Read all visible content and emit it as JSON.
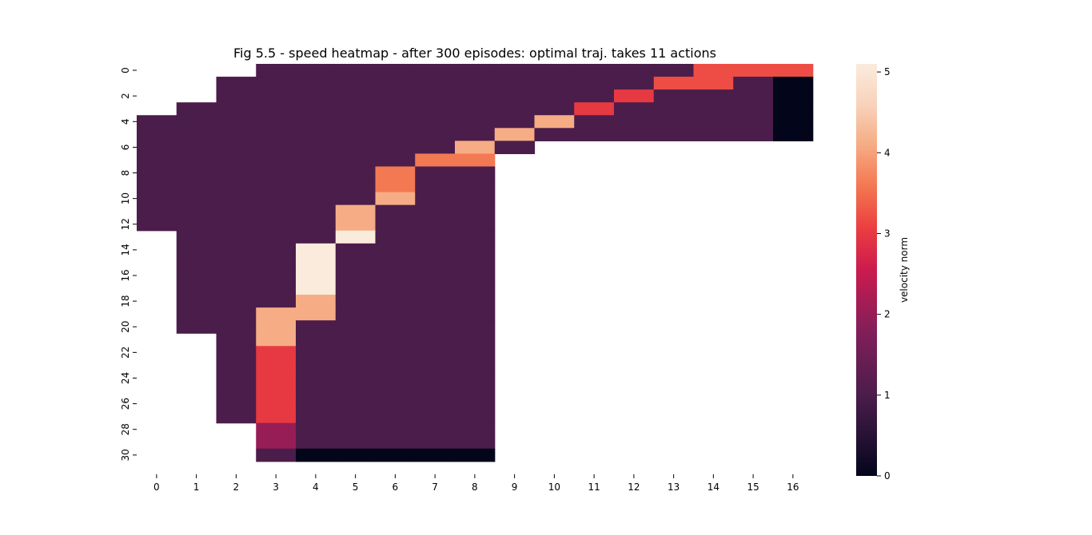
{
  "chart_data": {
    "type": "heatmap",
    "title": "Fig 5.5 - speed heatmap - after 300 episodes:  optimal traj. takes 11 actions",
    "colorbar_label": "velocity norm",
    "colormap": "rocket",
    "vmin": 0,
    "vmax": 5.1,
    "colorbar_ticks": [
      "0",
      "1",
      "2",
      "3",
      "4",
      "5"
    ],
    "x_ticks": [
      "0",
      "1",
      "2",
      "3",
      "4",
      "5",
      "6",
      "7",
      "8",
      "9",
      "10",
      "11",
      "12",
      "13",
      "14",
      "15",
      "16"
    ],
    "y_ticks": [
      "0",
      "2",
      "4",
      "6",
      "8",
      "10",
      "12",
      "14",
      "16",
      "18",
      "20",
      "22",
      "24",
      "26",
      "28",
      "30"
    ],
    "n_rows": 32,
    "n_cols": 17,
    "matrix": [
      [
        null,
        null,
        null,
        1,
        1,
        1,
        1,
        1,
        1,
        1,
        1,
        1,
        1,
        1,
        3.2,
        3.2,
        3.2
      ],
      [
        null,
        null,
        1,
        1,
        1,
        1,
        1,
        1,
        1,
        1,
        1,
        1,
        1,
        3.2,
        3.2,
        1,
        0
      ],
      [
        null,
        null,
        1,
        1,
        1,
        1,
        1,
        1,
        1,
        1,
        1,
        1,
        3,
        1,
        1,
        1,
        0
      ],
      [
        null,
        1,
        1,
        1,
        1,
        1,
        1,
        1,
        1,
        1,
        1,
        3,
        1,
        1,
        1,
        1,
        0
      ],
      [
        1,
        1,
        1,
        1,
        1,
        1,
        1,
        1,
        1,
        1,
        4.1,
        1,
        1,
        1,
        1,
        1,
        0
      ],
      [
        1,
        1,
        1,
        1,
        1,
        1,
        1,
        1,
        1,
        4.1,
        1,
        1,
        1,
        1,
        1,
        1,
        0
      ],
      [
        1,
        1,
        1,
        1,
        1,
        1,
        1,
        1,
        4.1,
        1,
        null,
        null,
        null,
        null,
        null,
        null,
        null
      ],
      [
        1,
        1,
        1,
        1,
        1,
        1,
        1,
        3.6,
        3.6,
        null,
        null,
        null,
        null,
        null,
        null,
        null,
        null
      ],
      [
        1,
        1,
        1,
        1,
        1,
        1,
        3.6,
        1,
        1,
        null,
        null,
        null,
        null,
        null,
        null,
        null,
        null
      ],
      [
        1,
        1,
        1,
        1,
        1,
        1,
        3.6,
        1,
        1,
        null,
        null,
        null,
        null,
        null,
        null,
        null,
        null
      ],
      [
        1,
        1,
        1,
        1,
        1,
        1,
        4.1,
        1,
        1,
        null,
        null,
        null,
        null,
        null,
        null,
        null,
        null
      ],
      [
        1,
        1,
        1,
        1,
        1,
        4.1,
        1,
        1,
        1,
        null,
        null,
        null,
        null,
        null,
        null,
        null,
        null
      ],
      [
        1,
        1,
        1,
        1,
        1,
        4.1,
        1,
        1,
        1,
        null,
        null,
        null,
        null,
        null,
        null,
        null,
        null
      ],
      [
        null,
        1,
        1,
        1,
        1,
        5.1,
        1,
        1,
        1,
        null,
        null,
        null,
        null,
        null,
        null,
        null,
        null
      ],
      [
        null,
        1,
        1,
        1,
        5.1,
        1,
        1,
        1,
        1,
        null,
        null,
        null,
        null,
        null,
        null,
        null,
        null
      ],
      [
        null,
        1,
        1,
        1,
        5.1,
        1,
        1,
        1,
        1,
        null,
        null,
        null,
        null,
        null,
        null,
        null,
        null
      ],
      [
        null,
        1,
        1,
        1,
        5.1,
        1,
        1,
        1,
        1,
        null,
        null,
        null,
        null,
        null,
        null,
        null,
        null
      ],
      [
        null,
        1,
        1,
        1,
        5.1,
        1,
        1,
        1,
        1,
        null,
        null,
        null,
        null,
        null,
        null,
        null,
        null
      ],
      [
        null,
        1,
        1,
        1,
        4.1,
        1,
        1,
        1,
        1,
        null,
        null,
        null,
        null,
        null,
        null,
        null,
        null
      ],
      [
        null,
        1,
        1,
        4.1,
        4.1,
        1,
        1,
        1,
        1,
        null,
        null,
        null,
        null,
        null,
        null,
        null,
        null
      ],
      [
        null,
        1,
        1,
        4.1,
        1,
        1,
        1,
        1,
        1,
        null,
        null,
        null,
        null,
        null,
        null,
        null,
        null
      ],
      [
        null,
        null,
        1,
        4.1,
        1,
        1,
        1,
        1,
        1,
        null,
        null,
        null,
        null,
        null,
        null,
        null,
        null
      ],
      [
        null,
        null,
        1,
        3,
        1,
        1,
        1,
        1,
        1,
        null,
        null,
        null,
        null,
        null,
        null,
        null,
        null
      ],
      [
        null,
        null,
        1,
        3,
        1,
        1,
        1,
        1,
        1,
        null,
        null,
        null,
        null,
        null,
        null,
        null,
        null
      ],
      [
        null,
        null,
        1,
        3,
        1,
        1,
        1,
        1,
        1,
        null,
        null,
        null,
        null,
        null,
        null,
        null,
        null
      ],
      [
        null,
        null,
        1,
        3,
        1,
        1,
        1,
        1,
        1,
        null,
        null,
        null,
        null,
        null,
        null,
        null,
        null
      ],
      [
        null,
        null,
        1,
        3,
        1,
        1,
        1,
        1,
        1,
        null,
        null,
        null,
        null,
        null,
        null,
        null,
        null
      ],
      [
        null,
        null,
        1,
        3,
        1,
        1,
        1,
        1,
        1,
        null,
        null,
        null,
        null,
        null,
        null,
        null,
        null
      ],
      [
        null,
        null,
        null,
        2,
        1,
        1,
        1,
        1,
        1,
        null,
        null,
        null,
        null,
        null,
        null,
        null,
        null
      ],
      [
        null,
        null,
        null,
        2,
        1,
        1,
        1,
        1,
        1,
        null,
        null,
        null,
        null,
        null,
        null,
        null,
        null
      ],
      [
        null,
        null,
        null,
        1,
        0,
        0,
        0,
        0,
        0,
        null,
        null,
        null,
        null,
        null,
        null,
        null,
        null
      ],
      [
        null,
        null,
        null,
        null,
        null,
        null,
        null,
        null,
        null,
        null,
        null,
        null,
        null,
        null,
        null,
        null,
        null
      ]
    ]
  }
}
